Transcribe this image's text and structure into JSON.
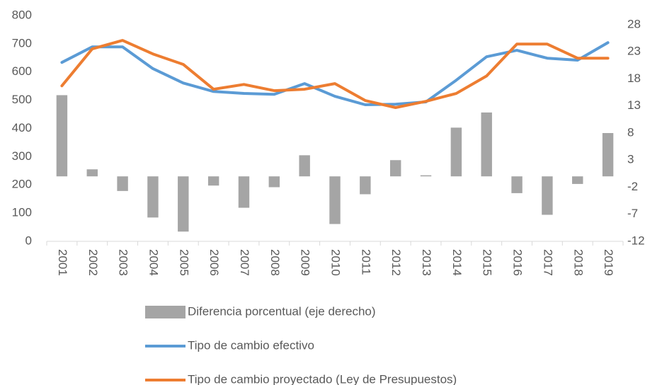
{
  "chart_data": {
    "type": "combo",
    "categories": [
      "2001",
      "2002",
      "2003",
      "2004",
      "2005",
      "2006",
      "2007",
      "2008",
      "2009",
      "2010",
      "2011",
      "2012",
      "2013",
      "2014",
      "2015",
      "2016",
      "2017",
      "2018",
      "2019"
    ],
    "ylim": [
      0,
      800
    ],
    "yticks": [
      0,
      100,
      200,
      300,
      400,
      500,
      600,
      700,
      800
    ],
    "y2lim": [
      -12,
      29.7
    ],
    "y2ticks": [
      -12,
      -7,
      -2,
      3,
      8,
      13,
      18,
      23,
      28
    ],
    "series": [
      {
        "name": "Diferencia porcentual (eje derecho)",
        "type": "bar",
        "axis": "y2",
        "color": "#a5a5a5",
        "values": [
          15.0,
          1.3,
          -2.7,
          -7.6,
          -10.2,
          -1.7,
          -5.8,
          -2.0,
          3.9,
          -8.8,
          -3.3,
          3.0,
          0.2,
          9.0,
          11.8,
          -3.1,
          -7.1,
          -1.4,
          8.0
        ]
      },
      {
        "name": "Tipo de cambio efectivo",
        "type": "line",
        "color": "#5b9bd5",
        "values": [
          634,
          689,
          689,
          612,
          561,
          531,
          524,
          521,
          559,
          514,
          484,
          486,
          494,
          571,
          654,
          677,
          649,
          642,
          704
        ]
      },
      {
        "name": "Tipo de cambio proyectado (Ley de Presupuestos)",
        "type": "line",
        "color": "#ed7d31",
        "values": [
          551,
          682,
          712,
          664,
          627,
          539,
          556,
          534,
          539,
          559,
          499,
          474,
          496,
          524,
          586,
          699,
          699,
          649,
          649
        ]
      }
    ]
  }
}
